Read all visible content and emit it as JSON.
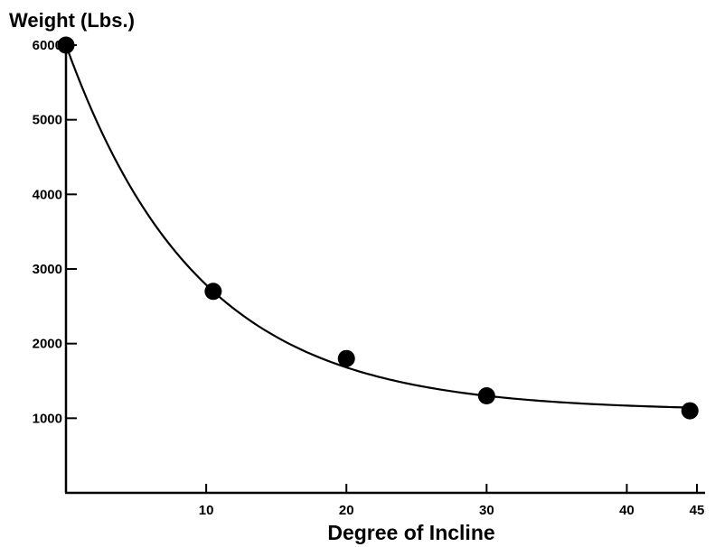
{
  "chart_data": {
    "type": "scatter",
    "xlabel": "Degree of Incline",
    "ylabel": "Weight (Lbs.)",
    "x_ticks": [
      10,
      20,
      30,
      40,
      45
    ],
    "y_ticks": [
      1000,
      2000,
      3000,
      4000,
      5000,
      6000
    ],
    "xlim": [
      0,
      45
    ],
    "ylim": [
      0,
      6000
    ],
    "grid": false,
    "series": [
      {
        "points": [
          {
            "x": 0,
            "y": 6000
          },
          {
            "x": 10.5,
            "y": 2700
          },
          {
            "x": 20,
            "y": 1800
          },
          {
            "x": 30,
            "y": 1300
          },
          {
            "x": 44.5,
            "y": 1100
          }
        ],
        "color": "#000000",
        "fit_curve": true
      }
    ]
  }
}
